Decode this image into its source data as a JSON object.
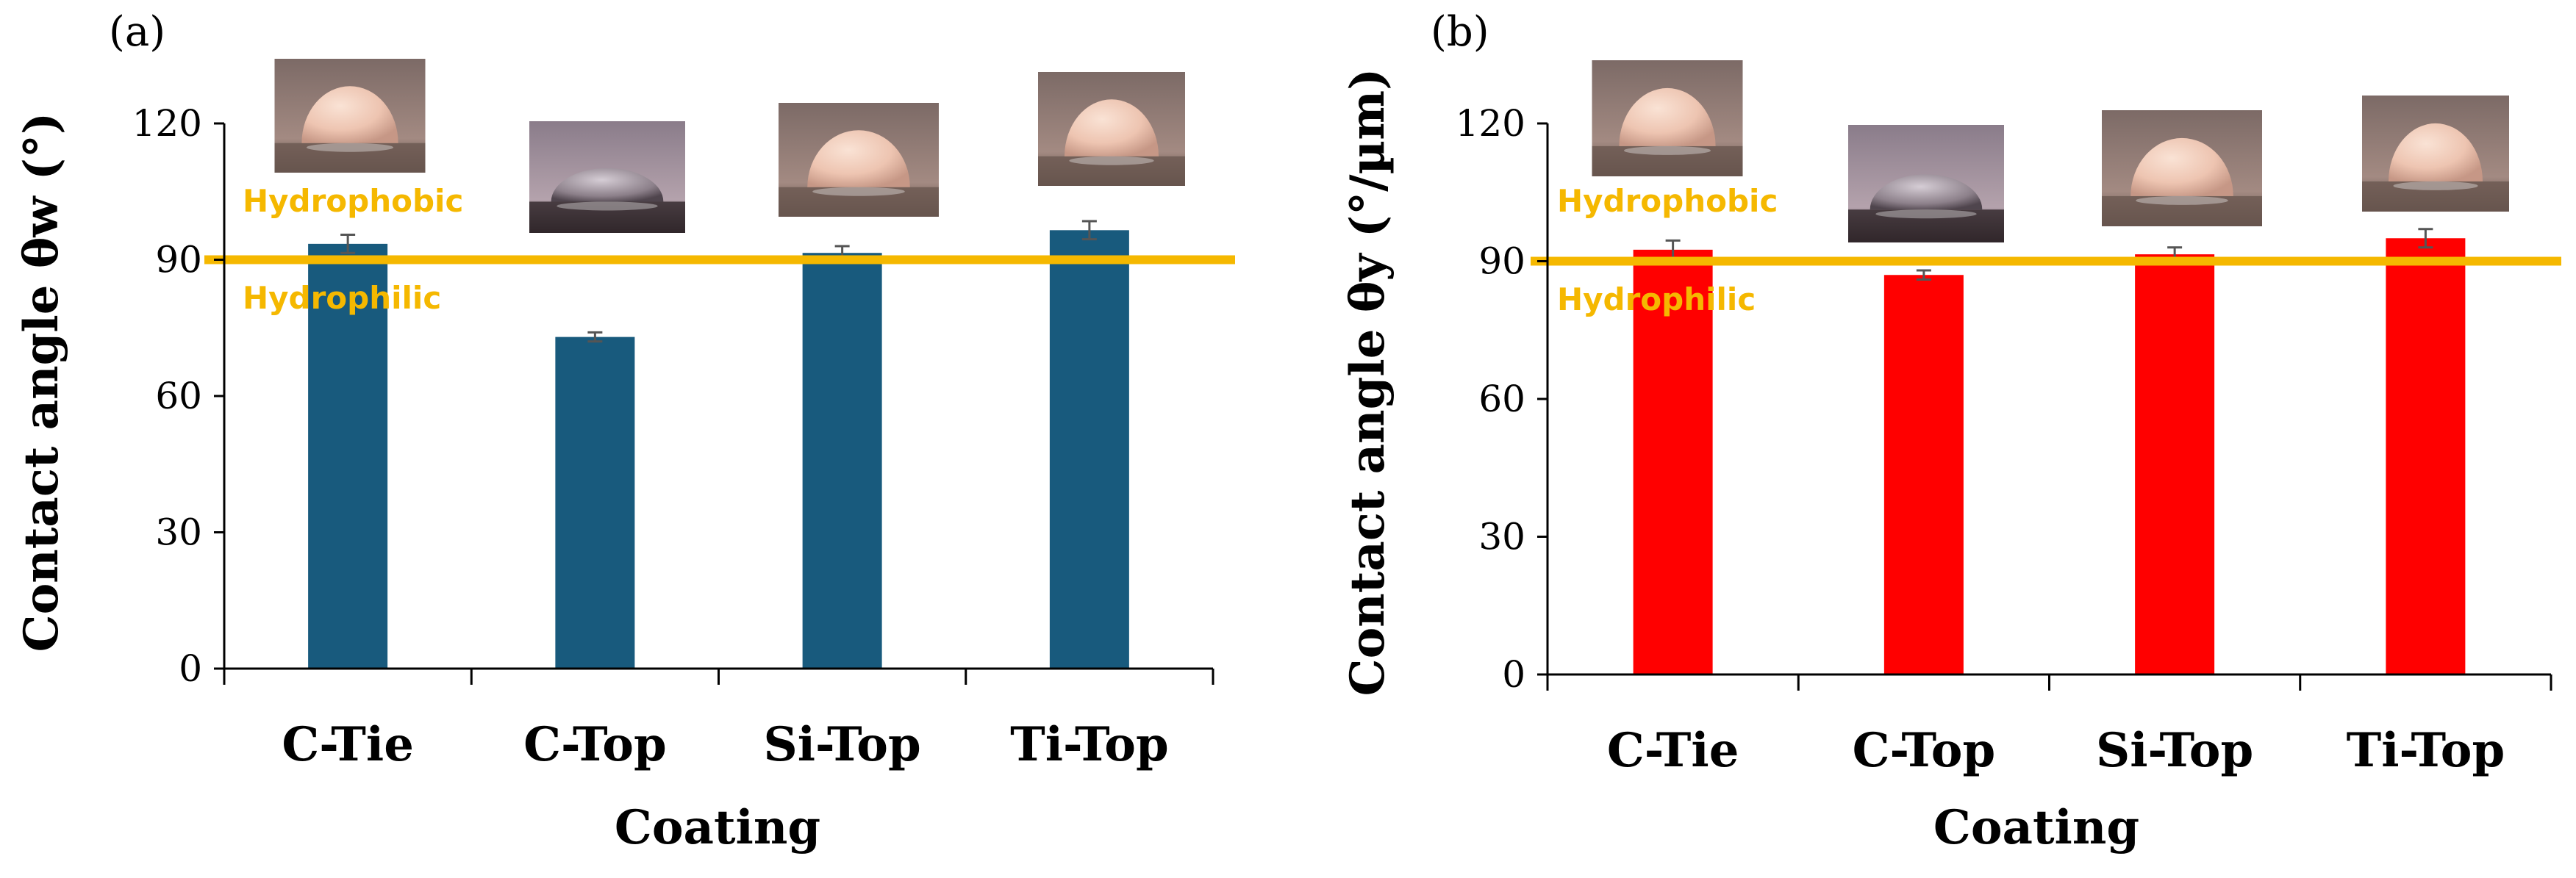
{
  "colors": {
    "panel_a_bar": "#185a7d",
    "panel_b_bar": "#ff0000",
    "threshold": "#f5b800",
    "axis": "#000000"
  },
  "chart_data": [
    {
      "type": "bar",
      "panel_label": "(a)",
      "categories": [
        "C-Tie",
        "C-Top",
        "Si-Top",
        "Ti-Top"
      ],
      "values": [
        93.5,
        73,
        91.5,
        96.5
      ],
      "errors": [
        2,
        1,
        1.5,
        2
      ],
      "xlabel": "Coating",
      "ylabel": "Contact angle θw (°)",
      "ylim": [
        0,
        120
      ],
      "yticks": [
        0,
        30,
        60,
        90,
        120
      ],
      "threshold": 90,
      "threshold_labels": {
        "above": "Hydrophobic",
        "below": "Hydrophilic"
      },
      "droplet_images": [
        "droplet-c-tie",
        "droplet-c-top",
        "droplet-si-top",
        "droplet-ti-top"
      ]
    },
    {
      "type": "bar",
      "panel_label": "(b)",
      "categories": [
        "C-Tie",
        "C-Top",
        "Si-Top",
        "Ti-Top"
      ],
      "values": [
        92.5,
        87,
        91.5,
        95
      ],
      "errors": [
        2,
        1,
        1.5,
        2
      ],
      "xlabel": "Coating",
      "ylabel": "Contact angle θy (°/µm)",
      "ylim": [
        0,
        120
      ],
      "yticks": [
        0,
        30,
        60,
        90,
        120
      ],
      "threshold": 90,
      "threshold_labels": {
        "above": "Hydrophobic",
        "below": "Hydrophilic"
      },
      "droplet_images": [
        "droplet-c-tie",
        "droplet-c-top",
        "droplet-si-top",
        "droplet-ti-top"
      ]
    }
  ]
}
